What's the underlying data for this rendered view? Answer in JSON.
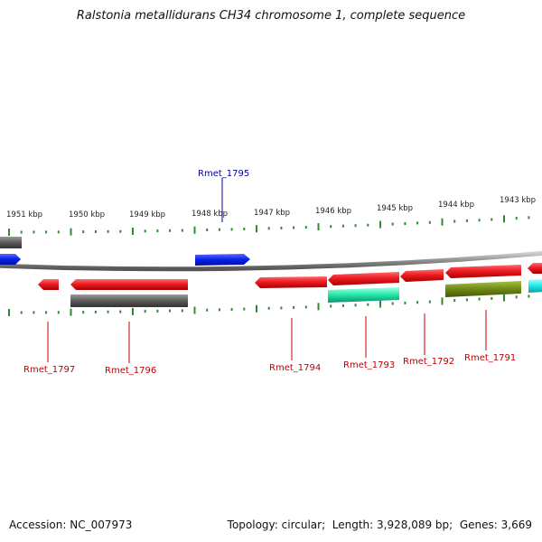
{
  "title": "Ralstonia metallidurans CH34 chromosome 1, complete sequence",
  "footer": {
    "accession_label": "Accession:",
    "accession": "NC_007973",
    "topology_label": "Topology:",
    "topology": "circular",
    "length_label": "Length:",
    "length": "3,928,089 bp",
    "genes_label": "Genes:",
    "genes": "3,669"
  },
  "colors": {
    "backbone": "#8c8c8c",
    "ticks": "#2e8b2e",
    "tick_label": "#222222",
    "cds": "#e8141b",
    "gene_gray": "#555555",
    "blue_gene": "#0a1ee8",
    "teal_gene": "#20e6a8",
    "olive_gene": "#6e8a16",
    "cyan_gene": "#1ee6e6",
    "red_label": "#c00000",
    "blue_label": "#00009a"
  },
  "scale": {
    "unit": "kbp",
    "top_labels": [
      "1951 kbp",
      "1950 kbp",
      "1949 kbp",
      "1948 kbp",
      "1947 kbp",
      "1946 kbp",
      "1945 kbp",
      "1944 kbp",
      "1943 kbp"
    ]
  },
  "gene_labels": [
    {
      "id": "rmet_1795",
      "text": "Rmet_1795",
      "strand": "top"
    },
    {
      "id": "rmet_1797",
      "text": "Rmet_1797",
      "strand": "bottom"
    },
    {
      "id": "rmet_1796",
      "text": "Rmet_1796",
      "strand": "bottom"
    },
    {
      "id": "rmet_1794",
      "text": "Rmet_1794",
      "strand": "bottom"
    },
    {
      "id": "rmet_1793",
      "text": "Rmet_1793",
      "strand": "bottom"
    },
    {
      "id": "rmet_1792",
      "text": "Rmet_1792",
      "strand": "bottom"
    },
    {
      "id": "rmet_1791",
      "text": "Rmet_1791",
      "strand": "bottom"
    }
  ]
}
